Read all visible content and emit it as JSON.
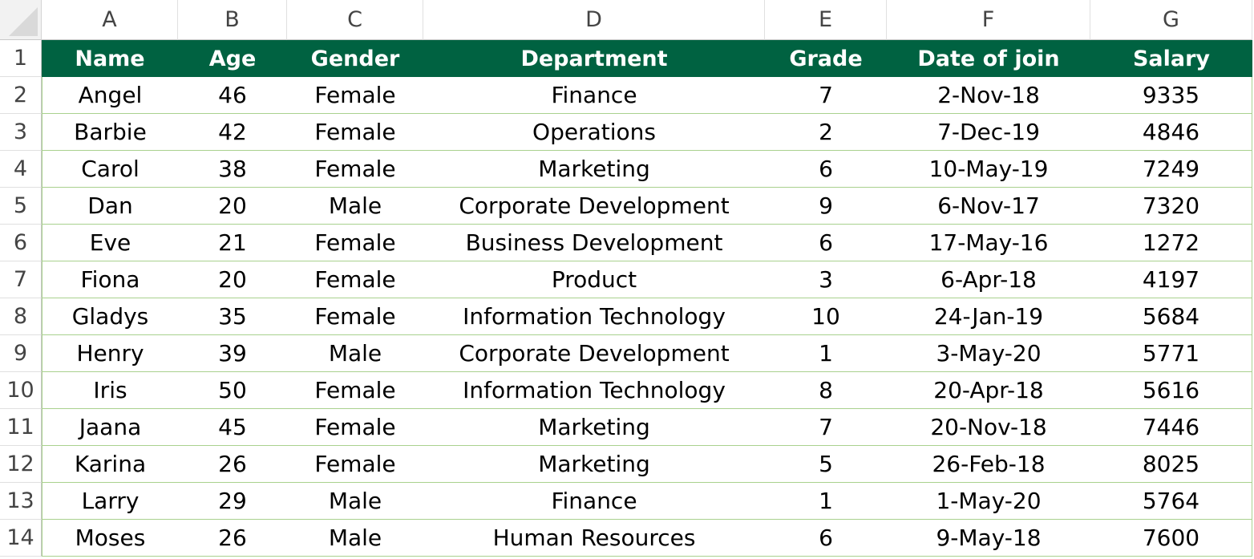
{
  "sheet": {
    "column_letters": [
      "A",
      "B",
      "C",
      "D",
      "E",
      "F",
      "G"
    ],
    "row_numbers": [
      "1",
      "2",
      "3",
      "4",
      "5",
      "6",
      "7",
      "8",
      "9",
      "10",
      "11",
      "12",
      "13",
      "14"
    ],
    "header_color": "#006241",
    "border_color": "#a9d18e",
    "header": [
      "Name",
      "Age",
      "Gender",
      "Department",
      "Grade",
      "Date of join",
      "Salary"
    ],
    "rows": [
      [
        "Angel",
        "46",
        "Female",
        "Finance",
        "7",
        "2-Nov-18",
        "9335"
      ],
      [
        "Barbie",
        "42",
        "Female",
        "Operations",
        "2",
        "7-Dec-19",
        "4846"
      ],
      [
        "Carol",
        "38",
        "Female",
        "Marketing",
        "6",
        "10-May-19",
        "7249"
      ],
      [
        "Dan",
        "20",
        "Male",
        "Corporate Development",
        "9",
        "6-Nov-17",
        "7320"
      ],
      [
        "Eve",
        "21",
        "Female",
        "Business Development",
        "6",
        "17-May-16",
        "1272"
      ],
      [
        "Fiona",
        "20",
        "Female",
        "Product",
        "3",
        "6-Apr-18",
        "4197"
      ],
      [
        "Gladys",
        "35",
        "Female",
        "Information Technology",
        "10",
        "24-Jan-19",
        "5684"
      ],
      [
        "Henry",
        "39",
        "Male",
        "Corporate Development",
        "1",
        "3-May-20",
        "5771"
      ],
      [
        "Iris",
        "50",
        "Female",
        "Information Technology",
        "8",
        "20-Apr-18",
        "5616"
      ],
      [
        "Jaana",
        "45",
        "Female",
        "Marketing",
        "7",
        "20-Nov-18",
        "7446"
      ],
      [
        "Karina",
        "26",
        "Female",
        "Marketing",
        "5",
        "26-Feb-18",
        "8025"
      ],
      [
        "Larry",
        "29",
        "Male",
        "Finance",
        "1",
        "1-May-20",
        "5764"
      ],
      [
        "Moses",
        "26",
        "Male",
        "Human Resources",
        "6",
        "9-May-18",
        "7600"
      ]
    ]
  }
}
